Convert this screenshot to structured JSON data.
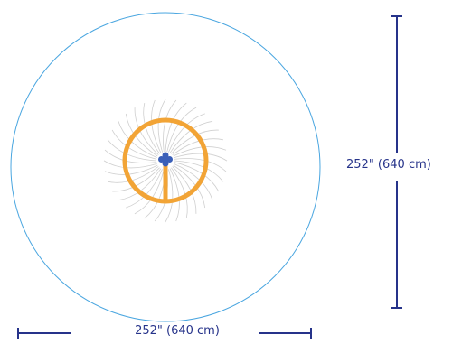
{
  "diagram": {
    "width_label": "252\" (640 cm)",
    "height_label": "252\" (640 cm)"
  },
  "colors": {
    "coverage_circle": "#4aa6e0",
    "trampoline_frame": "#f2a436",
    "center_hub": "#3a5fb8",
    "dimension_lines": "#26338a",
    "spokes": "#cfcfcf"
  }
}
